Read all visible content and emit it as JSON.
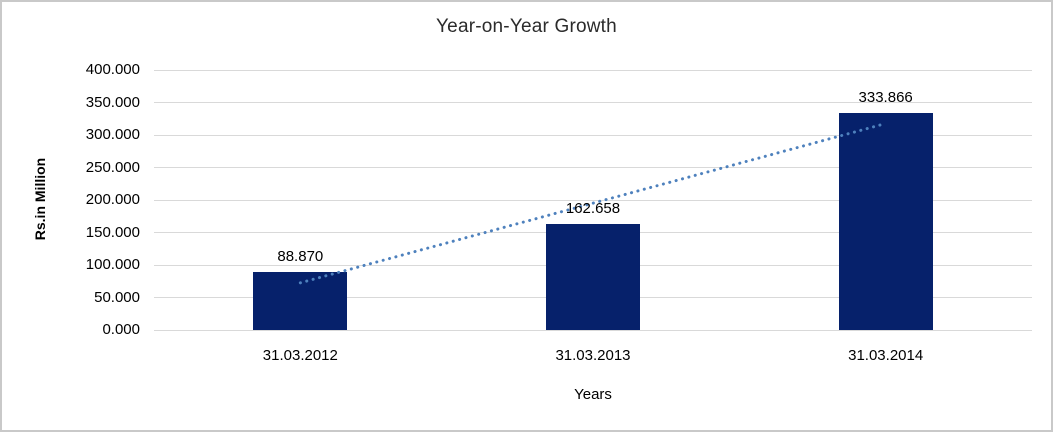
{
  "chart_data": {
    "type": "bar",
    "title": "Year-on-Year Growth",
    "categories": [
      "31.03.2012",
      "31.03.2013",
      "31.03.2014"
    ],
    "values": [
      88.87,
      162.658,
      333.866
    ],
    "data_labels": [
      "88.870",
      "162.658",
      "333.866"
    ],
    "xlabel": "Years",
    "ylabel": "Rs.in Million",
    "ylim": [
      0,
      400
    ],
    "ytick_step": 50,
    "ytick_labels": [
      "0.000",
      "50.000",
      "100.000",
      "150.000",
      "200.000",
      "250.000",
      "300.000",
      "350.000",
      "400.000"
    ],
    "grid": true,
    "legend_position": "none",
    "trendline": {
      "kind": "linear",
      "style": "dotted"
    },
    "colors": {
      "bar": "#06216b",
      "trendline": "#4e81bd",
      "gridline": "#d9d9d9",
      "text": "#000000",
      "title_text": "#2b2b2b",
      "background": "#ffffff",
      "frame_border": "#c9c9c9"
    }
  }
}
